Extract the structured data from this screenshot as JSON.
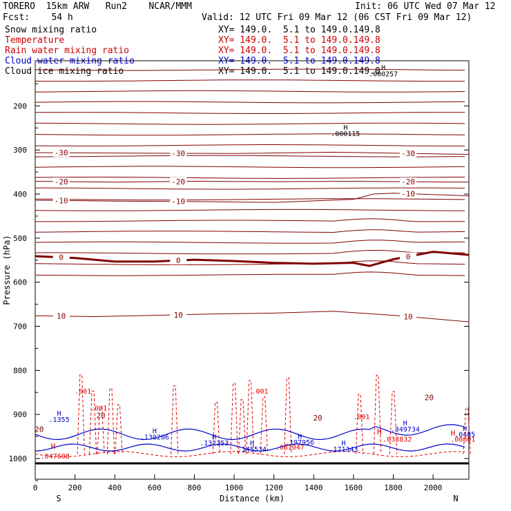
{
  "header": {
    "model": "TORERO  15km ARW   Run2    NCAR/MMM",
    "init": "Init: 06 UTC Wed 07 Mar 12",
    "fcst": "Fcst:    54 h",
    "valid": "Valid: 12 UTC Fri 09 Mar 12 (06 CST Fri 09 Mar 12)"
  },
  "fields": [
    {
      "label": "Snow mixing ratio",
      "xy": "XY= 149.0.  5.1 to 149.0.149.8",
      "color": "#000000"
    },
    {
      "label": "Temperature",
      "xy": "XY= 149.0.  5.1 to 149.0.149.8",
      "color": "#cc0000"
    },
    {
      "label": "Rain water mixing ratio",
      "xy": "XY= 149.0.  5.1 to 149.0.149.8",
      "color": "#cc0000"
    },
    {
      "label": "Cloud water mixing ratio",
      "xy": "XY= 149.0.  5.1 to 149.0.149.8",
      "color": "#0000cc"
    },
    {
      "label": "Cloud ice mixing ratio",
      "xy": "XY= 149.0.  5.1 to 149.0.149.0",
      "color": "#000000"
    }
  ],
  "chart_data": {
    "type": "contour",
    "xlabel": "Distance (km)",
    "ylabel": "Pressure (hPa)",
    "xlim": [
      0,
      2180
    ],
    "ylim": [
      1050,
      100
    ],
    "x_ticks": [
      0,
      200,
      400,
      600,
      800,
      1000,
      1200,
      1400,
      1600,
      1800,
      2000
    ],
    "y_ticks": [
      200,
      300,
      400,
      500,
      600,
      700,
      800,
      900,
      1000
    ],
    "end_labels": {
      "left": "S",
      "right": "N"
    },
    "colors": {
      "temperature": "#800000",
      "zero_isotherm": "#800000",
      "rain": "#e00000",
      "cloud_water": "#0000cc",
      "snow": "#000000",
      "terrain": "#000000"
    },
    "temperature_contours": [
      {
        "level": 10,
        "x": [
          0,
          300,
          600,
          900,
          1200,
          1500,
          1800,
          2180
        ],
        "p": [
          676,
          678,
          675,
          672,
          670,
          666,
          675,
          690
        ]
      },
      {
        "level": 0,
        "x": [
          0,
          200,
          400,
          600,
          800,
          1000,
          1200,
          1400,
          1600,
          1680,
          1800,
          2000,
          2180
        ],
        "p": [
          541,
          545,
          553,
          553,
          549,
          552,
          556,
          558,
          556,
          563,
          548,
          531,
          538
        ]
      },
      {
        "level": -10,
        "x": [
          0,
          400,
          800,
          1200,
          1600,
          1700,
          1800,
          2180
        ],
        "p": [
          414,
          416,
          417,
          419,
          412,
          400,
          398,
          404
        ]
      },
      {
        "level": -20,
        "x": [
          0,
          400,
          800,
          1200,
          1600,
          2180
        ],
        "p": [
          371,
          373,
          371,
          372,
          371,
          373
        ]
      },
      {
        "level": -30,
        "x": [
          0,
          500,
          1000,
          1500,
          2180
        ],
        "p": [
          306,
          307,
          308,
          305,
          310
        ]
      }
    ],
    "rain_labels": [
      {
        "x": 240,
        "p": 853,
        "text": ".001"
      },
      {
        "x": 320,
        "p": 891,
        "text": ".001"
      },
      {
        "x": 1130,
        "p": 853,
        "text": ".001"
      },
      {
        "x": 1640,
        "p": 911,
        "text": ".001"
      },
      {
        "x": 100,
        "p": 1000,
        "text": ".047608"
      },
      {
        "x": 1280,
        "p": 980,
        "text": ".081047"
      },
      {
        "x": 1820,
        "p": 962,
        "text": ".033832"
      },
      {
        "x": 2150,
        "p": 962,
        "text": ".00801"
      }
    ],
    "rain_maxima": [
      {
        "x": 90,
        "p": 978
      },
      {
        "x": 1730,
        "p": 945
      },
      {
        "x": 2100,
        "p": 948
      }
    ],
    "cloud_water_labels": [
      {
        "x": 120,
        "p": 917,
        "text": ".1355"
      },
      {
        "x": 600,
        "p": 957,
        "text": ".130206"
      },
      {
        "x": 900,
        "p": 970,
        "text": ".132353"
      },
      {
        "x": 1090,
        "p": 984,
        "text": ".145534"
      },
      {
        "x": 1330,
        "p": 969,
        "text": ".197956"
      },
      {
        "x": 1550,
        "p": 984,
        "text": ".171343"
      },
      {
        "x": 1860,
        "p": 939,
        "text": ".349734"
      },
      {
        "x": 2160,
        "p": 951,
        "text": ".0485"
      }
    ],
    "snow_labels": [
      {
        "x": 1560,
        "p": 268,
        "text": ".000115"
      },
      {
        "x": 1750,
        "p": 133,
        "text": ".000257"
      }
    ],
    "temperature_labels_extra": [
      {
        "x": 330,
        "p": 908,
        "text": "20"
      },
      {
        "x": 1420,
        "p": 914,
        "text": "20"
      },
      {
        "x": 1980,
        "p": 868,
        "text": "20"
      },
      {
        "x": 20,
        "p": 940,
        "text": "20"
      }
    ]
  }
}
